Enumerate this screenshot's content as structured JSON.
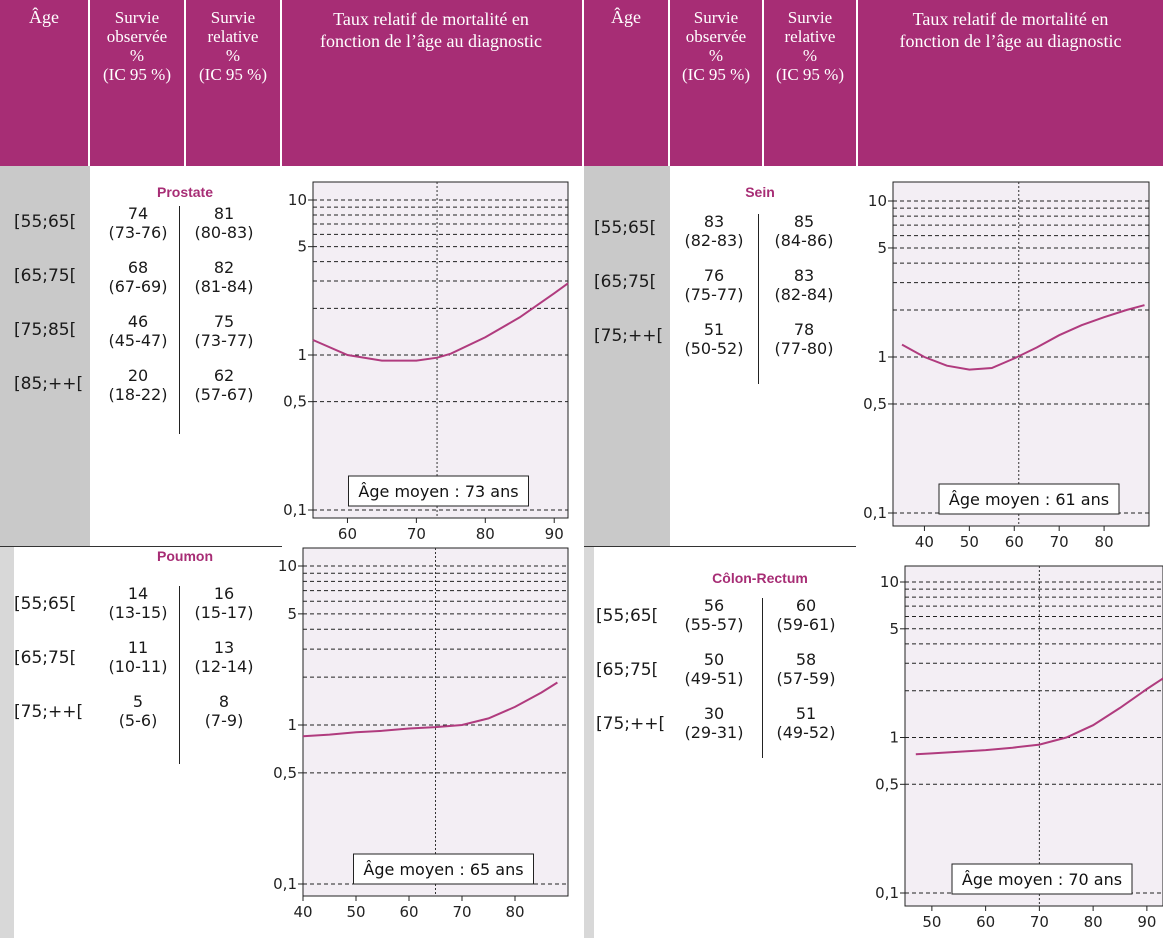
{
  "headers": {
    "age": "Âge",
    "observed": [
      "Survie",
      "observée",
      "%",
      "(IC 95 %)"
    ],
    "relative": [
      "Survie",
      "relative",
      "%",
      "(IC 95 %)"
    ],
    "rate": [
      "Taux relatif de mortalité en",
      "fonction de l’âge au diagnostic"
    ]
  },
  "colors": {
    "header_bg": "#a72d75",
    "curve": "#b03b7e",
    "panel_bg": "#f3eef4",
    "age_col_bg": "#c9c9c9"
  },
  "panels": [
    {
      "name": "Prostate",
      "ages": [
        "[55;65[",
        "[65;75[",
        "[75;85[",
        "[85;++["
      ],
      "observed": [
        {
          "v": "74",
          "ci": "(73-76)"
        },
        {
          "v": "68",
          "ci": "(67-69)"
        },
        {
          "v": "46",
          "ci": "(45-47)"
        },
        {
          "v": "20",
          "ci": "(18-22)"
        }
      ],
      "relative": [
        {
          "v": "81",
          "ci": "(80-83)"
        },
        {
          "v": "82",
          "ci": "(81-84)"
        },
        {
          "v": "75",
          "ci": "(73-77)"
        },
        {
          "v": "62",
          "ci": "(57-67)"
        }
      ],
      "mean_age": "Âge moyen : 73 ans"
    },
    {
      "name": "Sein",
      "ages": [
        "[55;65[",
        "[65;75[",
        "[75;++["
      ],
      "observed": [
        {
          "v": "83",
          "ci": "(82-83)"
        },
        {
          "v": "76",
          "ci": "(75-77)"
        },
        {
          "v": "51",
          "ci": "(50-52)"
        }
      ],
      "relative": [
        {
          "v": "85",
          "ci": "(84-86)"
        },
        {
          "v": "83",
          "ci": "(82-84)"
        },
        {
          "v": "78",
          "ci": "(77-80)"
        }
      ],
      "mean_age": "Âge moyen : 61 ans"
    },
    {
      "name": "Poumon",
      "ages": [
        "[55;65[",
        "[65;75[",
        "[75;++["
      ],
      "observed": [
        {
          "v": "14",
          "ci": "(13-15)"
        },
        {
          "v": "11",
          "ci": "(10-11)"
        },
        {
          "v": "5",
          "ci": "(5-6)"
        }
      ],
      "relative": [
        {
          "v": "16",
          "ci": "(15-17)"
        },
        {
          "v": "13",
          "ci": "(12-14)"
        },
        {
          "v": "8",
          "ci": "(7-9)"
        }
      ],
      "mean_age": "Âge moyen : 65 ans"
    },
    {
      "name": "Côlon-Rectum",
      "ages": [
        "[55;65[",
        "[65;75[",
        "[75;++["
      ],
      "observed": [
        {
          "v": "56",
          "ci": "(55-57)"
        },
        {
          "v": "50",
          "ci": "(49-51)"
        },
        {
          "v": "30",
          "ci": "(29-31)"
        }
      ],
      "relative": [
        {
          "v": "60",
          "ci": "(59-61)"
        },
        {
          "v": "58",
          "ci": "(57-59)"
        },
        {
          "v": "51",
          "ci": "(49-52)"
        }
      ],
      "mean_age": "Âge moyen : 70 ans"
    }
  ],
  "chart_data": [
    {
      "type": "line",
      "name": "Prostate",
      "x_scale": "linear",
      "y_scale": "log",
      "xlim": [
        55,
        92
      ],
      "ylim": [
        0.1,
        10
      ],
      "xticks": [
        "60",
        "70",
        "80",
        "90"
      ],
      "yticks": [
        "10",
        "5",
        "1",
        "0,5",
        "0,1"
      ],
      "mean_age": 73,
      "x": [
        55,
        60,
        65,
        70,
        73,
        75,
        80,
        85,
        90,
        92
      ],
      "y": [
        1.25,
        1.0,
        0.92,
        0.92,
        0.96,
        1.02,
        1.3,
        1.75,
        2.5,
        2.9
      ]
    },
    {
      "type": "line",
      "name": "Sein",
      "x_scale": "linear",
      "y_scale": "log",
      "xlim": [
        33,
        90
      ],
      "ylim": [
        0.1,
        10
      ],
      "xticks": [
        "40",
        "50",
        "60",
        "70",
        "80"
      ],
      "yticks": [
        "10",
        "5",
        "1",
        "0,5",
        "0,1"
      ],
      "mean_age": 61,
      "x": [
        35,
        40,
        45,
        50,
        55,
        60,
        65,
        70,
        75,
        80,
        85,
        89
      ],
      "y": [
        1.2,
        1.0,
        0.88,
        0.83,
        0.85,
        0.98,
        1.15,
        1.38,
        1.6,
        1.8,
        2.0,
        2.15
      ]
    },
    {
      "type": "line",
      "name": "Poumon",
      "x_scale": "linear",
      "y_scale": "log",
      "xlim": [
        40,
        90
      ],
      "ylim": [
        0.1,
        10
      ],
      "xticks": [
        "40",
        "50",
        "60",
        "70",
        "80"
      ],
      "yticks": [
        "10",
        "5",
        "1",
        "0,5",
        "0,1"
      ],
      "mean_age": 65,
      "x": [
        40,
        45,
        50,
        55,
        60,
        65,
        70,
        75,
        80,
        85,
        88
      ],
      "y": [
        0.85,
        0.87,
        0.9,
        0.92,
        0.95,
        0.97,
        1.0,
        1.1,
        1.3,
        1.6,
        1.85
      ]
    },
    {
      "type": "line",
      "name": "Côlon-Rectum",
      "x_scale": "linear",
      "y_scale": "log",
      "xlim": [
        45,
        93
      ],
      "ylim": [
        0.1,
        10
      ],
      "xticks": [
        "50",
        "60",
        "70",
        "80",
        "90"
      ],
      "yticks": [
        "10",
        "5",
        "1",
        "0,5",
        "0,1"
      ],
      "mean_age": 70,
      "x": [
        47,
        50,
        55,
        60,
        65,
        70,
        75,
        80,
        85,
        90,
        93
      ],
      "y": [
        0.78,
        0.79,
        0.81,
        0.83,
        0.86,
        0.9,
        1.0,
        1.2,
        1.55,
        2.05,
        2.4
      ]
    }
  ]
}
